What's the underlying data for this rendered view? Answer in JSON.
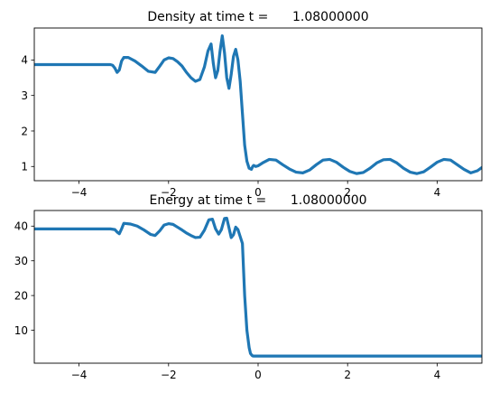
{
  "chart_data": [
    {
      "type": "line",
      "title": "Density at time t =      1.08000000",
      "xlabel": "",
      "ylabel": "",
      "xlim": [
        -5,
        5
      ],
      "ylim": [
        0.6,
        4.9
      ],
      "xticks": [
        -4,
        -2,
        0,
        2,
        4
      ],
      "xtick_labels": [
        "−4",
        "−2",
        "0",
        "2",
        "4"
      ],
      "yticks": [
        1,
        2,
        3,
        4
      ],
      "ytick_labels": [
        "1",
        "2",
        "3",
        "4"
      ],
      "grid": false,
      "legend": "none",
      "color": "#1f77b4",
      "series": [
        {
          "x": [
            -5,
            -3.3,
            -3.25,
            -3.2,
            -3.15,
            -3.1,
            -3.05,
            -3.0,
            -2.9,
            -2.75,
            -2.6,
            -2.45,
            -2.3,
            -2.2,
            -2.1,
            -2.0,
            -1.9,
            -1.8,
            -1.7,
            -1.6,
            -1.5,
            -1.4,
            -1.3,
            -1.2,
            -1.12,
            -1.05,
            -1.0,
            -0.95,
            -0.9,
            -0.85,
            -0.8,
            -0.75,
            -0.7,
            -0.65,
            -0.6,
            -0.55,
            -0.5,
            -0.45,
            -0.4,
            -0.35,
            -0.3,
            -0.25,
            -0.2,
            -0.15,
            -0.12,
            -0.1,
            -0.08,
            -0.05,
            0.0,
            0.1,
            0.25,
            0.4,
            0.55,
            0.7,
            0.85,
            1.0,
            1.15,
            1.3,
            1.45,
            1.6,
            1.75,
            1.9,
            2.05,
            2.2,
            2.35,
            2.5,
            2.65,
            2.8,
            2.95,
            3.1,
            3.25,
            3.4,
            3.55,
            3.7,
            3.85,
            4.0,
            4.15,
            4.3,
            4.45,
            4.6,
            4.75,
            4.9,
            5.0
          ],
          "y": [
            3.87,
            3.87,
            3.85,
            3.77,
            3.65,
            3.72,
            3.97,
            4.07,
            4.07,
            3.97,
            3.83,
            3.68,
            3.65,
            3.82,
            4.0,
            4.06,
            4.04,
            3.95,
            3.83,
            3.65,
            3.5,
            3.4,
            3.45,
            3.8,
            4.25,
            4.45,
            3.9,
            3.5,
            3.7,
            4.25,
            4.68,
            4.2,
            3.5,
            3.2,
            3.6,
            4.1,
            4.3,
            4.0,
            3.4,
            2.5,
            1.6,
            1.15,
            0.95,
            0.92,
            1.0,
            1.03,
            1.02,
            1.0,
            1.02,
            1.1,
            1.2,
            1.18,
            1.05,
            0.93,
            0.84,
            0.82,
            0.9,
            1.05,
            1.18,
            1.2,
            1.12,
            0.98,
            0.86,
            0.8,
            0.83,
            0.95,
            1.1,
            1.19,
            1.2,
            1.1,
            0.95,
            0.84,
            0.8,
            0.85,
            0.98,
            1.12,
            1.2,
            1.18,
            1.05,
            0.92,
            0.82,
            0.88,
            0.97
          ]
        }
      ]
    },
    {
      "type": "line",
      "title": "Energy at time t =      1.08000000",
      "xlabel": "",
      "ylabel": "",
      "xlim": [
        -5,
        5
      ],
      "ylim": [
        0.5,
        44.5
      ],
      "xticks": [
        -4,
        -2,
        0,
        2,
        4
      ],
      "xtick_labels": [
        "−4",
        "−2",
        "0",
        "2",
        "4"
      ],
      "yticks": [
        10,
        20,
        30,
        40
      ],
      "ytick_labels": [
        "10",
        "20",
        "30",
        "40"
      ],
      "grid": false,
      "legend": "none",
      "color": "#1f77b4",
      "series": [
        {
          "x": [
            -5,
            -3.3,
            -3.2,
            -3.15,
            -3.1,
            -3.05,
            -3.0,
            -2.85,
            -2.7,
            -2.55,
            -2.4,
            -2.3,
            -2.2,
            -2.1,
            -2.0,
            -1.9,
            -1.8,
            -1.7,
            -1.6,
            -1.5,
            -1.4,
            -1.3,
            -1.2,
            -1.1,
            -1.02,
            -0.95,
            -0.88,
            -0.82,
            -0.75,
            -0.7,
            -0.65,
            -0.6,
            -0.55,
            -0.5,
            -0.45,
            -0.4,
            -0.35,
            -0.3,
            -0.25,
            -0.2,
            -0.17,
            -0.14,
            -0.12,
            -0.1,
            0.0,
            1.0,
            2.0,
            3.0,
            4.0,
            5.0
          ],
          "y": [
            39.2,
            39.2,
            39.0,
            38.3,
            37.8,
            39.2,
            40.8,
            40.6,
            40.0,
            38.9,
            37.6,
            37.3,
            38.6,
            40.3,
            40.7,
            40.5,
            39.7,
            38.9,
            38.0,
            37.3,
            36.7,
            36.8,
            38.8,
            41.8,
            42.0,
            39.2,
            37.7,
            39.0,
            42.2,
            42.3,
            39.5,
            36.7,
            37.5,
            39.7,
            39.0,
            37.0,
            35.0,
            20.0,
            10.0,
            5.0,
            3.3,
            2.8,
            2.6,
            2.55,
            2.55,
            2.55,
            2.55,
            2.55,
            2.55,
            2.55
          ]
        }
      ]
    }
  ]
}
